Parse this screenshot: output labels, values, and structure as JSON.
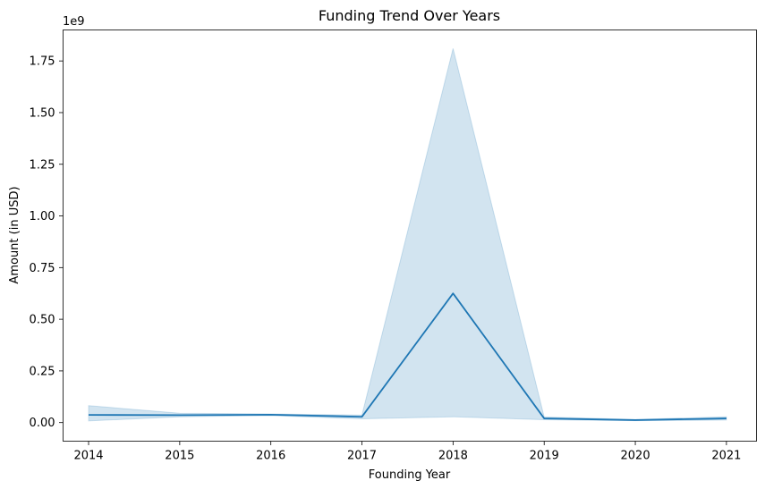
{
  "chart_data": {
    "type": "line",
    "title": "Funding Trend Over Years",
    "xlabel": "Founding Year",
    "ylabel": "Amount (in USD)",
    "y_offset_label": "1e9",
    "x": [
      2014,
      2015,
      2016,
      2017,
      2018,
      2019,
      2020,
      2021
    ],
    "xlim": [
      2013.72,
      2021.33
    ],
    "ylim": [
      -0.09,
      1.9
    ],
    "y_ticks": [
      0.0,
      0.25,
      0.5,
      0.75,
      1.0,
      1.25,
      1.5,
      1.75
    ],
    "y_tick_labels": [
      "0.00",
      "0.25",
      "0.50",
      "0.75",
      "1.00",
      "1.25",
      "1.50",
      "1.75"
    ],
    "x_tick_labels": [
      "2014",
      "2015",
      "2016",
      "2017",
      "2018",
      "2019",
      "2020",
      "2021"
    ],
    "grid": false,
    "series": [
      {
        "values": [
          0.037,
          0.036,
          0.038,
          0.028,
          0.625,
          0.02,
          0.012,
          0.02
        ],
        "ci_lower": [
          0.008,
          0.028,
          0.034,
          0.018,
          0.028,
          0.014,
          0.009,
          0.012
        ],
        "ci_upper": [
          0.082,
          0.045,
          0.042,
          0.036,
          1.81,
          0.027,
          0.015,
          0.028
        ],
        "color": "#1f77b4"
      }
    ]
  }
}
